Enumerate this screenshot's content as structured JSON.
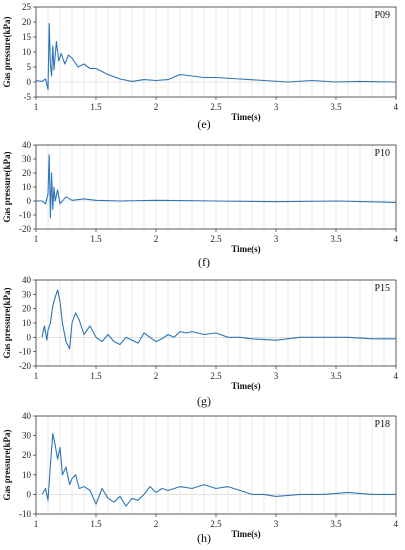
{
  "chart_data": [
    {
      "type": "line",
      "panel_label": "P09",
      "caption": "(e)",
      "xlabel": "Time(s)",
      "ylabel": "Gas pressure(kPa)",
      "xlim": [
        1,
        4
      ],
      "ylim": [
        -5,
        25
      ],
      "x_ticks": [
        "1",
        "1.5",
        "2",
        "2.5",
        "3",
        "3.5",
        "4"
      ],
      "y_ticks": [
        "-5",
        "0",
        "5",
        "10",
        "15",
        "20",
        "25"
      ],
      "grid": "vertical",
      "line_color": "#2e75b6",
      "x": [
        1.0,
        1.05,
        1.08,
        1.1,
        1.11,
        1.12,
        1.13,
        1.14,
        1.15,
        1.17,
        1.19,
        1.21,
        1.24,
        1.27,
        1.3,
        1.35,
        1.4,
        1.45,
        1.5,
        1.6,
        1.7,
        1.8,
        1.9,
        2.0,
        2.1,
        2.2,
        2.3,
        2.4,
        2.5,
        2.7,
        2.9,
        3.1,
        3.3,
        3.5,
        3.7,
        4.0
      ],
      "y": [
        0.5,
        0.2,
        1.0,
        -2.5,
        19.5,
        6.0,
        2.0,
        12.0,
        4.0,
        13.5,
        7.0,
        9.5,
        6.0,
        9.0,
        8.0,
        5.0,
        6.0,
        4.5,
        4.5,
        2.5,
        1.0,
        0.2,
        0.8,
        0.5,
        0.8,
        2.5,
        2.0,
        1.5,
        1.5,
        1.0,
        0.5,
        0.0,
        0.5,
        0.0,
        0.2,
        0.0
      ]
    },
    {
      "type": "line",
      "panel_label": "P10",
      "caption": "(f)",
      "xlabel": "Time(s)",
      "ylabel": "Gas pressure(kPa)",
      "xlim": [
        1,
        4
      ],
      "ylim": [
        -20,
        40
      ],
      "x_ticks": [
        "1",
        "1.5",
        "2",
        "2.5",
        "3",
        "3.5",
        "4"
      ],
      "y_ticks": [
        "-20",
        "-10",
        "0",
        "10",
        "20",
        "30",
        "40"
      ],
      "grid": "vertical",
      "line_color": "#2e75b6",
      "x": [
        1.0,
        1.05,
        1.08,
        1.1,
        1.11,
        1.12,
        1.13,
        1.14,
        1.15,
        1.16,
        1.18,
        1.2,
        1.25,
        1.3,
        1.4,
        1.5,
        1.7,
        2.0,
        2.5,
        3.0,
        3.5,
        4.0
      ],
      "y": [
        0.0,
        0.0,
        -2.0,
        5.0,
        33.0,
        -12.0,
        20.0,
        -6.0,
        10.0,
        0.0,
        8.0,
        -2.0,
        3.0,
        0.5,
        1.5,
        0.5,
        0.0,
        0.5,
        0.0,
        -0.5,
        0.0,
        -1.0
      ]
    },
    {
      "type": "line",
      "panel_label": "P15",
      "caption": "(g)",
      "xlabel": "Time(s)",
      "ylabel": "Gas pressure(kPa)",
      "xlim": [
        1,
        4
      ],
      "ylim": [
        -20,
        40
      ],
      "x_ticks": [
        "1",
        "1.5",
        "2",
        "2.5",
        "3",
        "3.5",
        "4"
      ],
      "y_ticks": [
        "-20",
        "-10",
        "0",
        "10",
        "20",
        "30",
        "40"
      ],
      "grid": "vertical",
      "line_color": "#2e75b6",
      "x": [
        1.05,
        1.07,
        1.09,
        1.1,
        1.12,
        1.14,
        1.16,
        1.18,
        1.2,
        1.22,
        1.25,
        1.28,
        1.3,
        1.33,
        1.36,
        1.4,
        1.45,
        1.5,
        1.55,
        1.6,
        1.65,
        1.7,
        1.75,
        1.8,
        1.85,
        1.9,
        1.95,
        2.0,
        2.05,
        2.1,
        2.15,
        2.2,
        2.25,
        2.3,
        2.4,
        2.5,
        2.6,
        2.7,
        2.8,
        3.0,
        3.2,
        3.4,
        3.6,
        3.8,
        4.0
      ],
      "y": [
        0.0,
        8.0,
        -2.0,
        5.0,
        10.0,
        22.0,
        28.0,
        33.0,
        25.0,
        10.0,
        -3.0,
        -8.0,
        10.0,
        17.0,
        12.0,
        2.0,
        8.0,
        0.0,
        -3.0,
        2.0,
        -3.0,
        -5.0,
        0.0,
        -2.0,
        -4.0,
        3.0,
        0.0,
        -3.0,
        -1.0,
        2.0,
        0.0,
        4.0,
        3.0,
        4.0,
        2.0,
        3.0,
        0.0,
        0.0,
        -1.0,
        -2.0,
        0.0,
        0.0,
        0.0,
        -1.0,
        -1.0
      ]
    },
    {
      "type": "line",
      "panel_label": "P18",
      "caption": "(h)",
      "xlabel": "Time(s)",
      "ylabel": "Gas pressure(kPa)",
      "xlim": [
        1,
        4
      ],
      "ylim": [
        -10,
        40
      ],
      "x_ticks": [
        "1",
        "1.5",
        "2",
        "2.5",
        "3",
        "3.5",
        "4"
      ],
      "y_ticks": [
        "-10",
        "0",
        "10",
        "20",
        "30",
        "40"
      ],
      "grid": "vertical",
      "line_color": "#2e75b6",
      "x": [
        1.05,
        1.08,
        1.1,
        1.12,
        1.14,
        1.16,
        1.18,
        1.2,
        1.22,
        1.25,
        1.28,
        1.3,
        1.33,
        1.36,
        1.4,
        1.45,
        1.5,
        1.55,
        1.6,
        1.65,
        1.7,
        1.75,
        1.8,
        1.85,
        1.9,
        1.95,
        2.0,
        2.05,
        2.1,
        2.2,
        2.3,
        2.4,
        2.5,
        2.6,
        2.7,
        2.8,
        2.9,
        3.0,
        3.2,
        3.4,
        3.6,
        3.8,
        4.0
      ],
      "y": [
        0.0,
        3.0,
        -3.0,
        15.0,
        31.0,
        25.0,
        18.0,
        24.0,
        10.0,
        14.0,
        5.0,
        8.0,
        10.0,
        3.0,
        4.0,
        2.0,
        -5.0,
        3.0,
        -2.0,
        -4.0,
        -1.0,
        -6.0,
        -2.0,
        -3.0,
        0.0,
        4.0,
        1.0,
        3.0,
        2.0,
        4.0,
        3.0,
        5.0,
        3.0,
        4.0,
        2.0,
        0.0,
        0.0,
        -1.0,
        0.0,
        0.0,
        1.0,
        0.0,
        0.0
      ]
    }
  ]
}
